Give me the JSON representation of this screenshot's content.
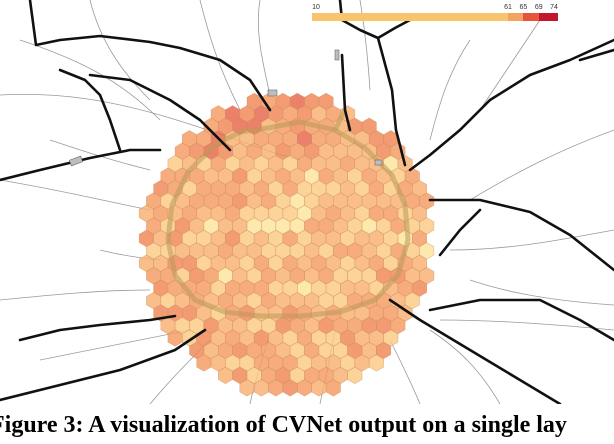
{
  "legend": {
    "ticks": [
      "10",
      "61",
      "65",
      "69",
      "74"
    ],
    "tick_values": [
      10,
      61,
      65,
      69,
      74
    ],
    "segments": [
      {
        "from": 10,
        "to": 61,
        "color": "#f9c46b"
      },
      {
        "from": 61,
        "to": 65,
        "color": "#f4a460"
      },
      {
        "from": 65,
        "to": 69,
        "color": "#e8553d"
      },
      {
        "from": 69,
        "to": 74,
        "color": "#c2152e"
      }
    ]
  },
  "hex_colors": [
    "#fdf1a8",
    "#fde39b",
    "#fbc982",
    "#f9b071",
    "#f59a62",
    "#f08654",
    "#e8654a"
  ],
  "road_color": "#111111",
  "street_color": "#9a9a9a",
  "ring_road_color": "#b89a55",
  "caption": "Figure 3: A visualization of CVNet output on a single lay"
}
